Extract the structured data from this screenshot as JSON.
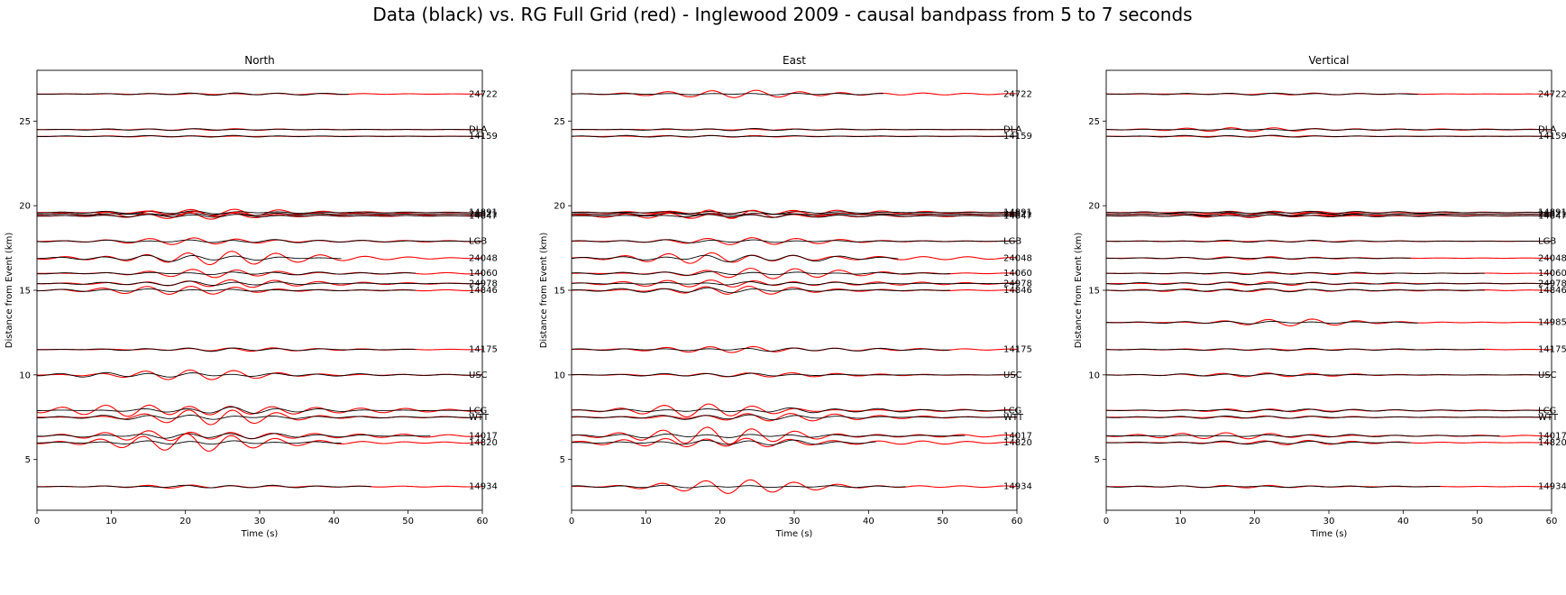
{
  "figure": {
    "suptitle": "Data (black) vs. RG Full Grid (red) - Inglewood 2009 - causal bandpass from 5 to 7 seconds",
    "legend_colors": {
      "data": "#000000",
      "model": "#ff0000"
    }
  },
  "chart_data": [
    {
      "type": "line",
      "title": "North",
      "xlabel": "Time (s)",
      "ylabel": "Distance from Event (km)",
      "xlim": [
        0,
        60
      ],
      "ylim": [
        2,
        28
      ],
      "xticks": [
        0,
        10,
        20,
        30,
        40,
        50,
        60
      ],
      "yticks": [
        5,
        10,
        15,
        20,
        25
      ],
      "grid": false,
      "series": [
        {
          "name": "24722",
          "distance": 26.6,
          "data_amp": 0.06,
          "model_amp": 0.07,
          "data_end": 42,
          "model_end": 60,
          "model_gain": 1.0
        },
        {
          "name": "DLA",
          "distance": 24.5,
          "data_amp": 0.05,
          "model_amp": 0.05,
          "data_end": 60,
          "model_end": 60,
          "model_gain": 1.0
        },
        {
          "name": "14159",
          "distance": 24.1,
          "data_amp": 0.05,
          "model_amp": 0.05,
          "data_end": 60,
          "model_end": 60,
          "model_gain": 1.0
        },
        {
          "name": "14891",
          "distance": 19.6,
          "data_amp": 0.08,
          "model_amp": 0.2,
          "data_end": 60,
          "model_end": 60,
          "model_gain": 1.0
        },
        {
          "name": "24821",
          "distance": 19.5,
          "data_amp": 0.08,
          "model_amp": 0.25,
          "data_end": 60,
          "model_end": 60,
          "model_gain": 1.0
        },
        {
          "name": "14847",
          "distance": 19.4,
          "data_amp": 0.08,
          "model_amp": 0.25,
          "data_end": 60,
          "model_end": 60,
          "model_gain": 1.0
        },
        {
          "name": "LGB",
          "distance": 17.9,
          "data_amp": 0.1,
          "model_amp": 0.25,
          "data_end": 60,
          "model_end": 60,
          "model_gain": 1.0
        },
        {
          "name": "24048",
          "distance": 16.9,
          "data_amp": 0.15,
          "model_amp": 0.5,
          "data_end": 41,
          "model_end": 60,
          "model_gain": 1.0
        },
        {
          "name": "14060",
          "distance": 16.0,
          "data_amp": 0.1,
          "model_amp": 0.3,
          "data_end": 51,
          "model_end": 60,
          "model_gain": 1.0
        },
        {
          "name": "24978",
          "distance": 15.4,
          "data_amp": 0.1,
          "model_amp": 0.3,
          "data_end": 60,
          "model_end": 60,
          "model_gain": 1.0
        },
        {
          "name": "14846",
          "distance": 15.0,
          "data_amp": 0.1,
          "model_amp": 0.25,
          "data_end": 51,
          "model_end": 60,
          "model_gain": 1.0
        },
        {
          "name": "14175",
          "distance": 11.5,
          "data_amp": 0.08,
          "model_amp": 0.15,
          "data_end": 51,
          "model_end": 60,
          "model_gain": 1.0
        },
        {
          "name": "USC",
          "distance": 10.0,
          "data_amp": 0.15,
          "model_amp": 0.3,
          "data_end": 60,
          "model_end": 60,
          "model_gain": 1.0
        },
        {
          "name": "LCG",
          "distance": 7.9,
          "data_amp": 0.15,
          "model_amp": 0.6,
          "data_end": 60,
          "model_end": 60,
          "model_gain": 1.0
        },
        {
          "name": "WTT",
          "distance": 7.5,
          "data_amp": 0.15,
          "model_amp": 0.45,
          "data_end": 60,
          "model_end": 60,
          "model_gain": 1.0
        },
        {
          "name": "14017",
          "distance": 6.4,
          "data_amp": 0.15,
          "model_amp": 0.5,
          "data_end": 53,
          "model_end": 60,
          "model_gain": 1.0
        },
        {
          "name": "14820",
          "distance": 6.0,
          "data_amp": 0.12,
          "model_amp": 0.55,
          "data_end": 41,
          "model_end": 60,
          "model_gain": 1.0
        },
        {
          "name": "14934",
          "distance": 3.4,
          "data_amp": 0.08,
          "model_amp": 0.15,
          "data_end": 45,
          "model_end": 60,
          "model_gain": 1.0
        }
      ]
    },
    {
      "type": "line",
      "title": "East",
      "xlabel": "Time (s)",
      "ylabel": "Distance from Event (km)",
      "xlim": [
        0,
        60
      ],
      "ylim": [
        2,
        28
      ],
      "xticks": [
        0,
        10,
        20,
        30,
        40,
        50,
        60
      ],
      "yticks": [
        5,
        10,
        15,
        20,
        25
      ],
      "grid": false,
      "series": [
        {
          "name": "24722",
          "distance": 26.6,
          "data_amp": 0.06,
          "model_amp": 0.25,
          "data_end": 42,
          "model_end": 60,
          "model_gain": 1.0
        },
        {
          "name": "DLA",
          "distance": 24.5,
          "data_amp": 0.05,
          "model_amp": 0.05,
          "data_end": 60,
          "model_end": 60,
          "model_gain": 1.0
        },
        {
          "name": "14159",
          "distance": 24.1,
          "data_amp": 0.05,
          "model_amp": 0.05,
          "data_end": 60,
          "model_end": 60,
          "model_gain": 1.0
        },
        {
          "name": "14891",
          "distance": 19.6,
          "data_amp": 0.08,
          "model_amp": 0.2,
          "data_end": 60,
          "model_end": 60,
          "model_gain": 1.0
        },
        {
          "name": "24821",
          "distance": 19.5,
          "data_amp": 0.08,
          "model_amp": 0.25,
          "data_end": 60,
          "model_end": 60,
          "model_gain": 1.0
        },
        {
          "name": "14847",
          "distance": 19.4,
          "data_amp": 0.08,
          "model_amp": 0.25,
          "data_end": 60,
          "model_end": 60,
          "model_gain": 1.0
        },
        {
          "name": "LGB",
          "distance": 17.9,
          "data_amp": 0.1,
          "model_amp": 0.2,
          "data_end": 60,
          "model_end": 60,
          "model_gain": 1.0
        },
        {
          "name": "24048",
          "distance": 16.9,
          "data_amp": 0.2,
          "model_amp": 0.5,
          "data_end": 44,
          "model_end": 60,
          "model_gain": 1.0
        },
        {
          "name": "14060",
          "distance": 16.0,
          "data_amp": 0.1,
          "model_amp": 0.3,
          "data_end": 51,
          "model_end": 60,
          "model_gain": 1.0
        },
        {
          "name": "24978",
          "distance": 15.4,
          "data_amp": 0.1,
          "model_amp": 0.3,
          "data_end": 60,
          "model_end": 60,
          "model_gain": 1.0
        },
        {
          "name": "14846",
          "distance": 15.0,
          "data_amp": 0.12,
          "model_amp": 0.3,
          "data_end": 51,
          "model_end": 60,
          "model_gain": 1.0
        },
        {
          "name": "14175",
          "distance": 11.5,
          "data_amp": 0.1,
          "model_amp": 0.25,
          "data_end": 51,
          "model_end": 60,
          "model_gain": 1.0
        },
        {
          "name": "USC",
          "distance": 10.0,
          "data_amp": 0.08,
          "model_amp": 0.15,
          "data_end": 60,
          "model_end": 60,
          "model_gain": 1.0
        },
        {
          "name": "LCG",
          "distance": 7.9,
          "data_amp": 0.15,
          "model_amp": 0.4,
          "data_end": 60,
          "model_end": 60,
          "model_gain": 1.0
        },
        {
          "name": "WTT",
          "distance": 7.5,
          "data_amp": 0.12,
          "model_amp": 0.3,
          "data_end": 60,
          "model_end": 60,
          "model_gain": 1.0
        },
        {
          "name": "14017",
          "distance": 6.4,
          "data_amp": 0.15,
          "model_amp": 0.5,
          "data_end": 53,
          "model_end": 60,
          "model_gain": 1.0
        },
        {
          "name": "14820",
          "distance": 6.0,
          "data_amp": 0.12,
          "model_amp": 0.55,
          "data_end": 41,
          "model_end": 60,
          "model_gain": 1.0
        },
        {
          "name": "14934",
          "distance": 3.4,
          "data_amp": 0.08,
          "model_amp": 0.4,
          "data_end": 45,
          "model_end": 60,
          "model_gain": 1.0
        }
      ]
    },
    {
      "type": "line",
      "title": "Vertical",
      "xlabel": "Time (s)",
      "ylabel": "Distance from Event (km)",
      "xlim": [
        0,
        60
      ],
      "ylim": [
        2,
        28
      ],
      "xticks": [
        0,
        10,
        20,
        30,
        40,
        50,
        60
      ],
      "yticks": [
        5,
        10,
        15,
        20,
        25
      ],
      "grid": false,
      "series": [
        {
          "name": "24722",
          "distance": 26.6,
          "data_amp": 0.05,
          "model_amp": 0.05,
          "data_end": 42,
          "model_end": 60,
          "model_gain": 1.0
        },
        {
          "name": "DLA",
          "distance": 24.5,
          "data_amp": 0.05,
          "model_amp": 0.15,
          "data_end": 60,
          "model_end": 60,
          "model_gain": 1.0
        },
        {
          "name": "14159",
          "distance": 24.1,
          "data_amp": 0.05,
          "model_amp": 0.05,
          "data_end": 60,
          "model_end": 60,
          "model_gain": 1.0
        },
        {
          "name": "14891",
          "distance": 19.6,
          "data_amp": 0.08,
          "model_amp": 0.1,
          "data_end": 60,
          "model_end": 60,
          "model_gain": 1.0
        },
        {
          "name": "24821",
          "distance": 19.5,
          "data_amp": 0.08,
          "model_amp": 0.1,
          "data_end": 60,
          "model_end": 60,
          "model_gain": 1.0
        },
        {
          "name": "14847",
          "distance": 19.4,
          "data_amp": 0.08,
          "model_amp": 0.1,
          "data_end": 60,
          "model_end": 60,
          "model_gain": 1.0
        },
        {
          "name": "LGB",
          "distance": 17.9,
          "data_amp": 0.05,
          "model_amp": 0.05,
          "data_end": 60,
          "model_end": 60,
          "model_gain": 1.0
        },
        {
          "name": "24048",
          "distance": 16.9,
          "data_amp": 0.06,
          "model_amp": 0.08,
          "data_end": 41,
          "model_end": 60,
          "model_gain": 1.0
        },
        {
          "name": "14060",
          "distance": 16.0,
          "data_amp": 0.06,
          "model_amp": 0.08,
          "data_end": 51,
          "model_end": 60,
          "model_gain": 1.0
        },
        {
          "name": "24978",
          "distance": 15.4,
          "data_amp": 0.08,
          "model_amp": 0.1,
          "data_end": 60,
          "model_end": 60,
          "model_gain": 1.0
        },
        {
          "name": "14846",
          "distance": 15.0,
          "data_amp": 0.08,
          "model_amp": 0.15,
          "data_end": 51,
          "model_end": 60,
          "model_gain": 1.0
        },
        {
          "name": "14985",
          "distance": 13.1,
          "data_amp": 0.08,
          "model_amp": 0.2,
          "data_end": 42,
          "model_end": 60,
          "model_gain": 1.0
        },
        {
          "name": "14175",
          "distance": 11.5,
          "data_amp": 0.06,
          "model_amp": 0.08,
          "data_end": 51,
          "model_end": 60,
          "model_gain": 1.0
        },
        {
          "name": "USC",
          "distance": 10.0,
          "data_amp": 0.06,
          "model_amp": 0.12,
          "data_end": 60,
          "model_end": 60,
          "model_gain": 1.0
        },
        {
          "name": "LCG",
          "distance": 7.9,
          "data_amp": 0.08,
          "model_amp": 0.15,
          "data_end": 60,
          "model_end": 60,
          "model_gain": 1.0
        },
        {
          "name": "WTT",
          "distance": 7.5,
          "data_amp": 0.06,
          "model_amp": 0.08,
          "data_end": 60,
          "model_end": 60,
          "model_gain": 1.0
        },
        {
          "name": "14017",
          "distance": 6.4,
          "data_amp": 0.08,
          "model_amp": 0.2,
          "data_end": 53,
          "model_end": 60,
          "model_gain": 1.0
        },
        {
          "name": "14820",
          "distance": 6.0,
          "data_amp": 0.08,
          "model_amp": 0.15,
          "data_end": 41,
          "model_end": 60,
          "model_gain": 1.0
        },
        {
          "name": "14934",
          "distance": 3.4,
          "data_amp": 0.06,
          "model_amp": 0.08,
          "data_end": 45,
          "model_end": 60,
          "model_gain": 1.0
        }
      ]
    }
  ]
}
